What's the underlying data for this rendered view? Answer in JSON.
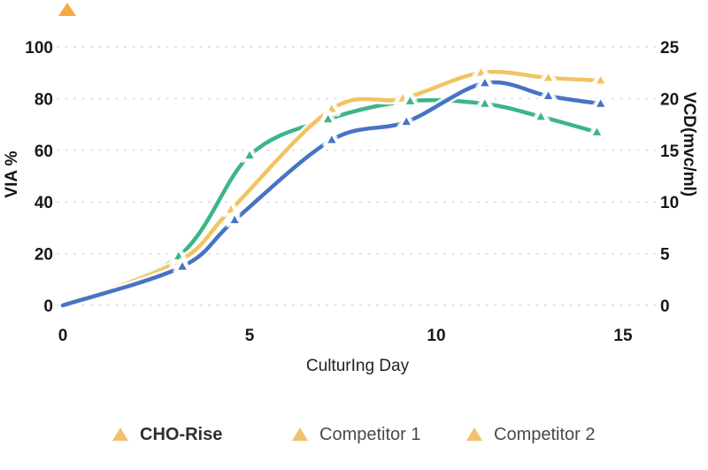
{
  "chart_data": {
    "type": "line",
    "title": "",
    "xlabel": "CulturIng Day",
    "ylabel_left": "VIA %",
    "ylabel_right": "VCD(mvc/ml)",
    "x_ticks": [
      0,
      5,
      10,
      15
    ],
    "y_left_ticks": [
      0,
      20,
      40,
      60,
      80,
      100
    ],
    "y_right_ticks": [
      0,
      5,
      10,
      15,
      20,
      25
    ],
    "xlim": [
      0,
      15.85
    ],
    "ylim_left": [
      0,
      108
    ],
    "ylim_right": [
      0,
      27
    ],
    "grid": "horizontal-dashed",
    "grid_color": "#e2e2e6",
    "series": [
      {
        "name": "Competitor 1",
        "color": "#3DB586",
        "x": [
          0,
          3.1,
          5.0,
          7.1,
          9.3,
          11.3,
          12.8,
          14.3
        ],
        "via": [
          0,
          19,
          58,
          72,
          79,
          78,
          73,
          67
        ],
        "vcd": [
          0,
          4.75,
          14.5,
          18,
          19.75,
          19.5,
          18.25,
          16.75
        ]
      },
      {
        "name": "CHO-Rise",
        "color": "#F2C361",
        "x": [
          0,
          3.1,
          4.5,
          7.2,
          9.1,
          11.2,
          13.0,
          14.4
        ],
        "via": [
          0,
          17,
          37,
          76,
          80,
          90,
          88,
          87
        ],
        "vcd": [
          0,
          4.25,
          9.25,
          19,
          20,
          22.5,
          22,
          21.75
        ]
      },
      {
        "name": "Competitor 2",
        "color": "#4673C5",
        "x": [
          0,
          3.2,
          4.6,
          7.2,
          9.2,
          11.3,
          13.0,
          14.4
        ],
        "via": [
          0,
          15,
          33,
          64,
          71,
          86,
          81,
          78
        ],
        "vcd": [
          0,
          3.75,
          8.25,
          16,
          17.75,
          21.5,
          20.25,
          19.5
        ]
      }
    ],
    "legend": {
      "position": "bottom",
      "marker": "triangle",
      "marker_color": "#F1C071",
      "items": [
        {
          "label": "CHO-Rise"
        },
        {
          "label": "Competitor 1"
        },
        {
          "label": "Competitor 2"
        }
      ]
    }
  },
  "decor": {
    "corner_triangle_color": "#F6A93C"
  }
}
